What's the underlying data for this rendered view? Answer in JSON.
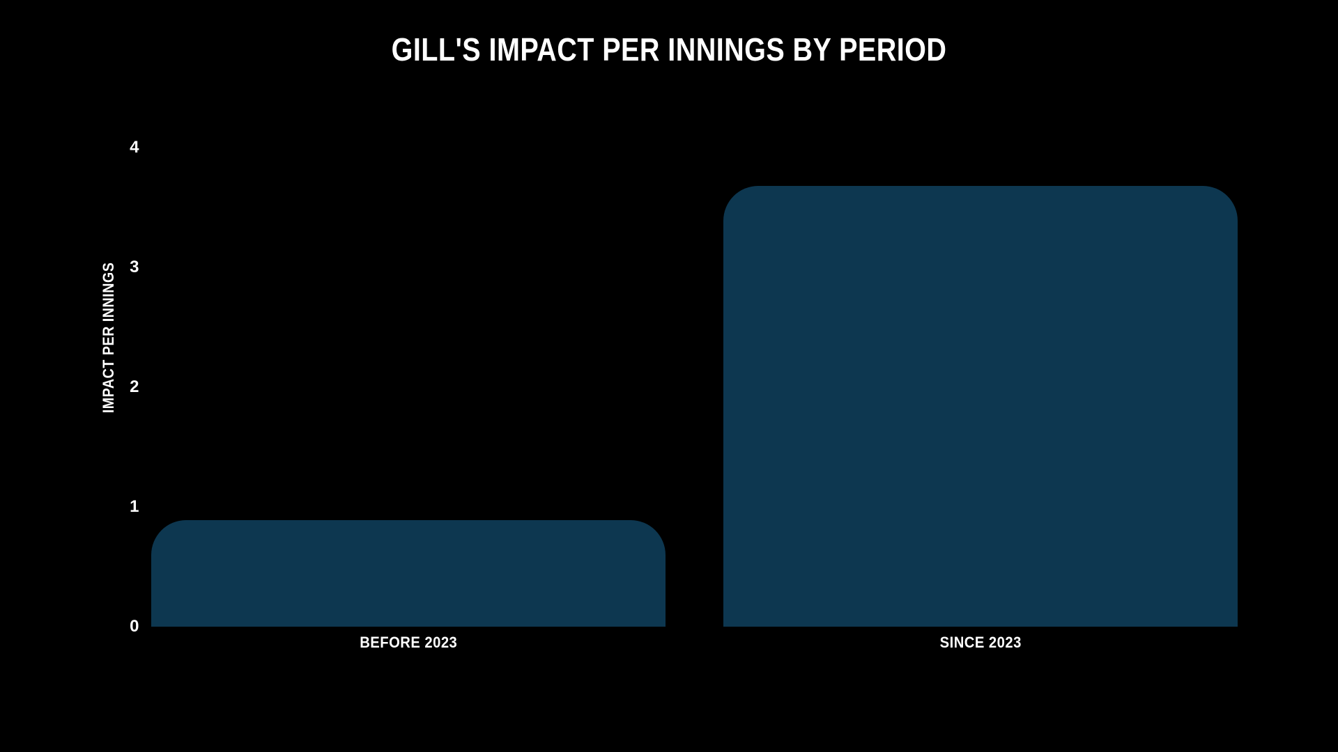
{
  "colors": {
    "background": "#000000",
    "text": "#ffffff",
    "bar": "#0d3750"
  },
  "chart_data": {
    "type": "bar",
    "title": "GILL'S IMPACT PER INNINGS BY PERIOD",
    "categories": [
      "BEFORE 2023",
      "SINCE 2023"
    ],
    "values": [
      0.89,
      3.68
    ],
    "xlabel": "",
    "ylabel": "IMPACT PER INNINGS",
    "ylim": [
      0,
      4.2
    ],
    "yticks": [
      0,
      1,
      2,
      3,
      4
    ],
    "grid": false,
    "legend": false,
    "bar_color": "#0d3750",
    "background_color": "#000000",
    "text_color": "#ffffff"
  }
}
